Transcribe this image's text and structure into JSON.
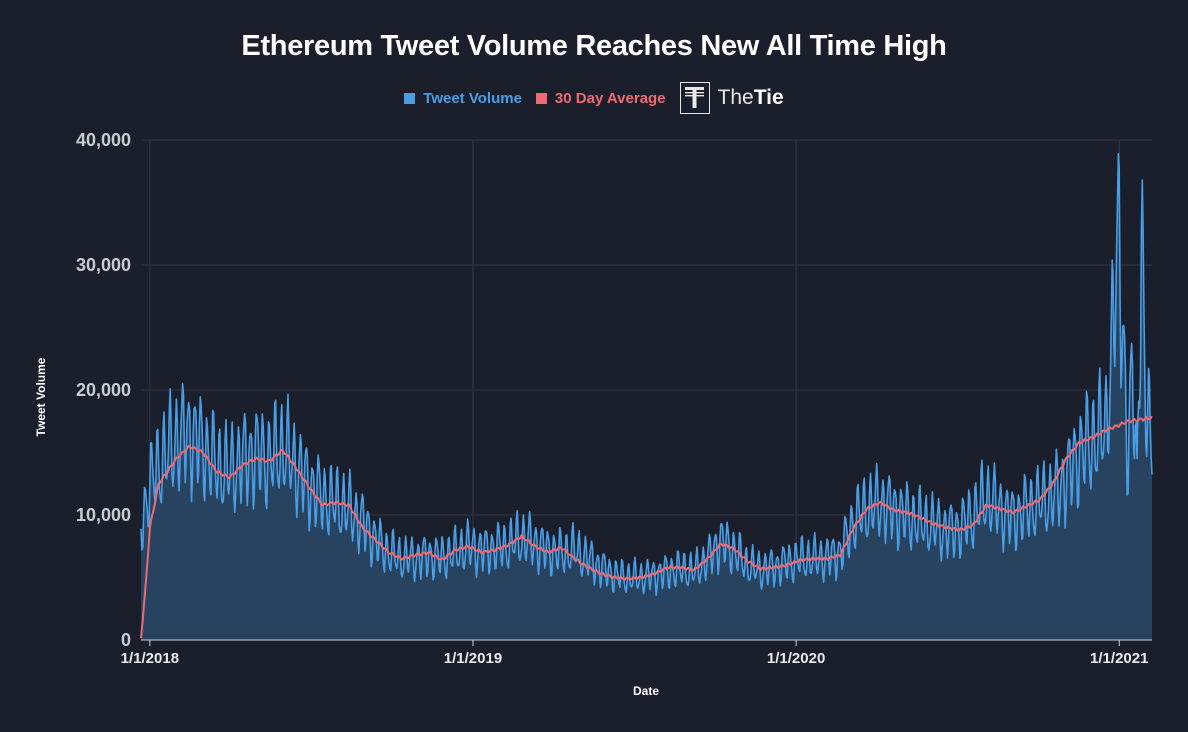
{
  "chart_data": {
    "type": "area",
    "title": "Ethereum Tweet Volume Reaches New All Time High",
    "xlabel": "Date",
    "ylabel": "Tweet Volume",
    "ylim": [
      0,
      40000
    ],
    "y_ticks": [
      "0",
      "10,000",
      "20,000",
      "30,000",
      "40,000"
    ],
    "x_ticks": [
      "1/1/2018",
      "1/1/2019",
      "1/1/2020",
      "1/1/2021"
    ],
    "x_range_days": [
      -10,
      1132
    ],
    "legend": [
      "Tweet Volume",
      "30 Day Average"
    ],
    "series": [
      {
        "name": "Tweet Volume",
        "x_days": [
          -10,
          0,
          15,
          30,
          45,
          60,
          75,
          90,
          105,
          120,
          135,
          150,
          165,
          180,
          195,
          210,
          225,
          240,
          255,
          270,
          285,
          300,
          315,
          330,
          345,
          360,
          375,
          390,
          405,
          420,
          435,
          450,
          465,
          480,
          495,
          510,
          525,
          540,
          555,
          570,
          585,
          600,
          615,
          630,
          645,
          660,
          675,
          690,
          705,
          720,
          735,
          750,
          765,
          780,
          795,
          810,
          825,
          840,
          855,
          870,
          885,
          900,
          915,
          930,
          945,
          960,
          975,
          990,
          1005,
          1020,
          1035,
          1050,
          1065,
          1080,
          1095,
          1105,
          1110,
          1115,
          1120,
          1125,
          1132
        ],
        "values": [
          9000,
          12500,
          14500,
          16000,
          16500,
          15500,
          14000,
          13500,
          14500,
          15000,
          14500,
          15500,
          14000,
          12500,
          11500,
          11000,
          10500,
          9500,
          8000,
          7000,
          6500,
          6500,
          6800,
          6600,
          7000,
          7500,
          7200,
          7400,
          7600,
          8200,
          7800,
          7200,
          7000,
          7200,
          6500,
          5800,
          5200,
          5000,
          5000,
          5200,
          5500,
          5700,
          5500,
          6500,
          8000,
          7200,
          6000,
          5600,
          5900,
          6200,
          6500,
          6500,
          6600,
          7000,
          9500,
          10500,
          11000,
          10500,
          10000,
          9500,
          9200,
          8800,
          9000,
          10000,
          11500,
          10500,
          9800,
          10500,
          11000,
          11500,
          13000,
          15000,
          16000,
          17000,
          32500,
          14000,
          22000,
          13000,
          32800,
          18000,
          16500
        ],
        "color": "#4a9ee6"
      },
      {
        "name": "30 Day Average",
        "x_days": [
          -10,
          -5,
          0,
          10,
          20,
          30,
          45,
          60,
          75,
          90,
          105,
          120,
          135,
          150,
          165,
          180,
          195,
          210,
          225,
          240,
          255,
          270,
          285,
          300,
          315,
          330,
          345,
          360,
          375,
          390,
          405,
          420,
          435,
          450,
          465,
          480,
          495,
          510,
          525,
          540,
          555,
          570,
          585,
          600,
          615,
          630,
          645,
          660,
          675,
          690,
          705,
          720,
          735,
          750,
          765,
          780,
          795,
          810,
          825,
          840,
          855,
          870,
          885,
          900,
          915,
          930,
          945,
          960,
          975,
          990,
          1005,
          1020,
          1035,
          1050,
          1065,
          1080,
          1095,
          1105,
          1115,
          1125,
          1132
        ],
        "values": [
          200,
          4000,
          9000,
          12500,
          13500,
          14500,
          15500,
          15000,
          13500,
          13000,
          14000,
          14500,
          14300,
          15200,
          13800,
          12200,
          10800,
          11000,
          10800,
          9000,
          8000,
          7000,
          6500,
          6800,
          7000,
          6400,
          7200,
          7500,
          7000,
          7200,
          7600,
          8300,
          7500,
          7000,
          7400,
          6500,
          5800,
          5300,
          5000,
          4900,
          5000,
          5300,
          5800,
          5800,
          5600,
          6500,
          7700,
          7300,
          6300,
          5700,
          5800,
          6000,
          6400,
          6500,
          6500,
          6800,
          9000,
          10500,
          11000,
          10400,
          10200,
          9800,
          9300,
          9000,
          8800,
          9200,
          10800,
          10500,
          10200,
          10700,
          11200,
          12500,
          14500,
          15800,
          16200,
          16800,
          17200,
          17500,
          17600,
          17700,
          17800
        ],
        "color": "#ef6a73"
      }
    ]
  },
  "legend": {
    "tweet_volume": "Tweet Volume",
    "avg": "30 Day Average",
    "tweet_color": "#4a9ee6",
    "avg_color": "#ef6a73"
  },
  "brand": {
    "name_light": "The",
    "name_bold": "Tie"
  }
}
